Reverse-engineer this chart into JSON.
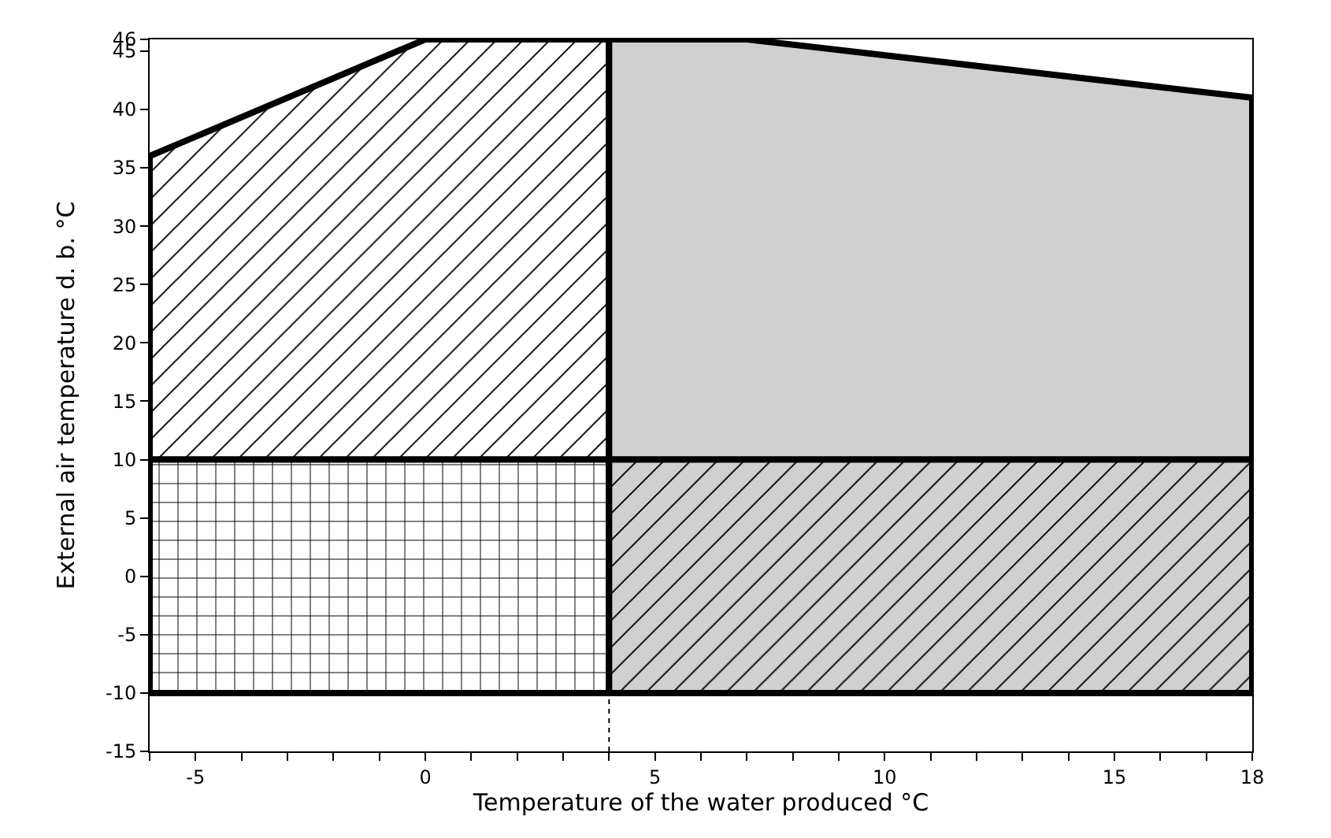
{
  "chart_data": {
    "type": "area",
    "xlabel": "Temperature of the water produced °C",
    "ylabel": "External air temperature d. b. °C",
    "xlim": [
      -6,
      18
    ],
    "ylim": [
      -15,
      46
    ],
    "xticks": [
      {
        "value": -6,
        "label": null
      },
      -5,
      {
        "value": -4,
        "label": null
      },
      {
        "value": -3,
        "label": null
      },
      {
        "value": -2,
        "label": null
      },
      {
        "value": -1,
        "label": null
      },
      0,
      {
        "value": 1,
        "label": null
      },
      {
        "value": 2,
        "label": null
      },
      {
        "value": 3,
        "label": null
      },
      {
        "value": 4,
        "label": null
      },
      5,
      {
        "value": 6,
        "label": null
      },
      {
        "value": 7,
        "label": null
      },
      {
        "value": 8,
        "label": null
      },
      {
        "value": 9,
        "label": null
      },
      10,
      {
        "value": 11,
        "label": null
      },
      {
        "value": 12,
        "label": null
      },
      {
        "value": 13,
        "label": null
      },
      {
        "value": 14,
        "label": null
      },
      15,
      {
        "value": 16,
        "label": null
      },
      {
        "value": 17,
        "label": null
      },
      18
    ],
    "yticks": [
      -15,
      -10,
      -5,
      0,
      5,
      10,
      15,
      20,
      25,
      30,
      35,
      40,
      45,
      46
    ],
    "series": [
      {
        "color": "#ffffff",
        "x": [
          -6,
          0,
          4,
          4,
          -6
        ],
        "values": [
          36,
          46,
          46,
          10,
          10
        ]
      },
      {
        "color": "#d0d0d0",
        "x": [
          4,
          7,
          18,
          18,
          4
        ],
        "values": [
          46,
          46,
          41,
          10,
          10
        ]
      },
      {
        "color": "#ffffff",
        "x": [
          -6,
          4,
          4,
          -6
        ],
        "values": [
          10,
          10,
          -10,
          -10
        ]
      },
      {
        "color": "#d0d0d0",
        "x": [
          4,
          18,
          18,
          4
        ],
        "values": [
          10,
          10,
          -10,
          -10
        ]
      }
    ],
    "ref_lines": [
      {
        "axis": "x",
        "value": 4,
        "label": null,
        "line_style": "dotted",
        "color": "#000000"
      }
    ]
  }
}
